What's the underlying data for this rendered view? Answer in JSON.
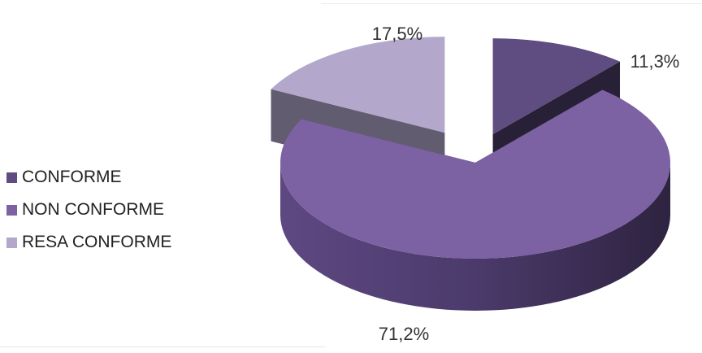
{
  "chart_data": {
    "type": "pie",
    "title": "",
    "categories": [
      "CONFORME",
      "NON CONFORME",
      "RESA CONFORME"
    ],
    "values": [
      11.3,
      71.2,
      17.5
    ],
    "value_labels": [
      "11,3%",
      "71,2%",
      "17,5%"
    ],
    "colors": [
      "#5f4c80",
      "#7c61a3",
      "#b3a8cb"
    ],
    "legend_position": "left",
    "style": "3d-exploded"
  }
}
